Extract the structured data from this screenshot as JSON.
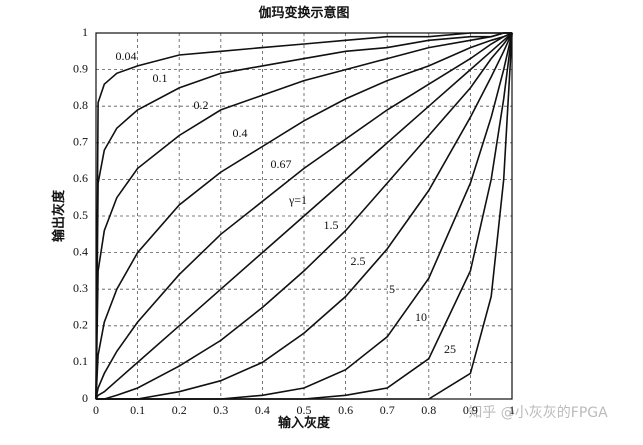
{
  "chart_data": {
    "type": "line",
    "title": "伽玛变换示意图",
    "x_label": "输入灰度",
    "y_label": "输出灰度",
    "watermark": "知乎 @小灰灰的FPGA",
    "x": [
      0,
      0.005,
      0.02,
      0.05,
      0.1,
      0.2,
      0.3,
      0.4,
      0.5,
      0.6,
      0.7,
      0.8,
      0.9,
      0.95,
      0.98,
      1
    ],
    "series": [
      {
        "name": "0.04",
        "color": "#111111",
        "values": [
          0,
          0.81,
          0.86,
          0.89,
          0.91,
          0.94,
          0.95,
          0.96,
          0.97,
          0.98,
          0.99,
          0.99,
          1,
          1,
          1,
          1
        ]
      },
      {
        "name": "0.1",
        "color": "#111111",
        "values": [
          0,
          0.59,
          0.68,
          0.74,
          0.79,
          0.85,
          0.89,
          0.91,
          0.93,
          0.95,
          0.96,
          0.98,
          0.99,
          0.99,
          1,
          1
        ]
      },
      {
        "name": "0.2",
        "color": "#111111",
        "values": [
          0,
          0.35,
          0.46,
          0.55,
          0.63,
          0.72,
          0.79,
          0.83,
          0.87,
          0.9,
          0.93,
          0.96,
          0.98,
          0.99,
          1,
          1
        ]
      },
      {
        "name": "0.4",
        "color": "#111111",
        "values": [
          0,
          0.12,
          0.21,
          0.3,
          0.4,
          0.53,
          0.62,
          0.69,
          0.76,
          0.82,
          0.87,
          0.91,
          0.96,
          0.98,
          0.99,
          1
        ]
      },
      {
        "name": "0.67",
        "color": "#111111",
        "values": [
          0,
          0.03,
          0.07,
          0.13,
          0.21,
          0.34,
          0.45,
          0.54,
          0.63,
          0.71,
          0.79,
          0.86,
          0.93,
          0.97,
          0.99,
          1
        ]
      },
      {
        "name": "γ=1",
        "color": "#111111",
        "values": [
          0,
          0.01,
          0.02,
          0.05,
          0.1,
          0.2,
          0.3,
          0.4,
          0.5,
          0.6,
          0.7,
          0.8,
          0.9,
          0.95,
          0.98,
          1
        ]
      },
      {
        "name": "1.5",
        "color": "#111111",
        "values": [
          0,
          0,
          0,
          0.01,
          0.03,
          0.09,
          0.16,
          0.25,
          0.35,
          0.46,
          0.59,
          0.72,
          0.85,
          0.93,
          0.97,
          1
        ]
      },
      {
        "name": "2.5",
        "color": "#111111",
        "values": [
          0,
          0,
          0,
          0,
          0,
          0.02,
          0.05,
          0.1,
          0.18,
          0.28,
          0.41,
          0.57,
          0.77,
          0.88,
          0.95,
          1
        ]
      },
      {
        "name": "5",
        "color": "#111111",
        "values": [
          0,
          0,
          0,
          0,
          0,
          0,
          0,
          0.01,
          0.03,
          0.08,
          0.17,
          0.33,
          0.59,
          0.77,
          0.9,
          1
        ]
      },
      {
        "name": "10",
        "color": "#111111",
        "values": [
          0,
          0,
          0,
          0,
          0,
          0,
          0,
          0,
          0,
          0.01,
          0.03,
          0.11,
          0.35,
          0.6,
          0.82,
          1
        ]
      },
      {
        "name": "25",
        "color": "#111111",
        "values": [
          0,
          0,
          0,
          0,
          0,
          0,
          0,
          0,
          0,
          0,
          0,
          0,
          0.07,
          0.28,
          0.6,
          1
        ]
      }
    ],
    "xlim": [
      0,
      1
    ],
    "ylim": [
      0,
      1
    ],
    "xticks": [
      0,
      0.1,
      0.2,
      0.3,
      0.4,
      0.5,
      0.6,
      0.7,
      0.8,
      0.9,
      1
    ],
    "yticks": [
      0,
      0.1,
      0.2,
      0.3,
      0.4,
      0.5,
      0.6,
      0.7,
      0.8,
      0.9,
      1
    ],
    "grid": true
  }
}
